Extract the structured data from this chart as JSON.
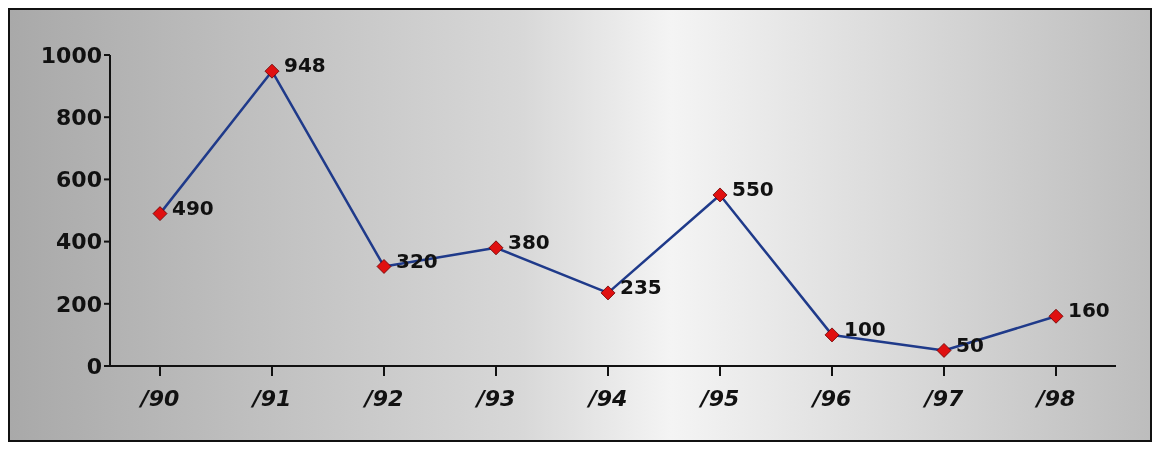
{
  "chart_data": {
    "type": "line",
    "categories": [
      "/90",
      "/91",
      "/92",
      "/93",
      "/94",
      "/95",
      "/96",
      "/97",
      "/98"
    ],
    "series": [
      {
        "color": "#1f3a8a",
        "values": [
          490,
          948,
          320,
          380,
          235,
          550,
          100,
          50,
          160
        ]
      }
    ],
    "ylim": [
      0,
      1000
    ],
    "yticks": [
      0,
      200,
      400,
      600,
      800,
      1000
    ],
    "grid": false,
    "marker": "diamond",
    "line_style": "solid",
    "data_labels": true
  }
}
